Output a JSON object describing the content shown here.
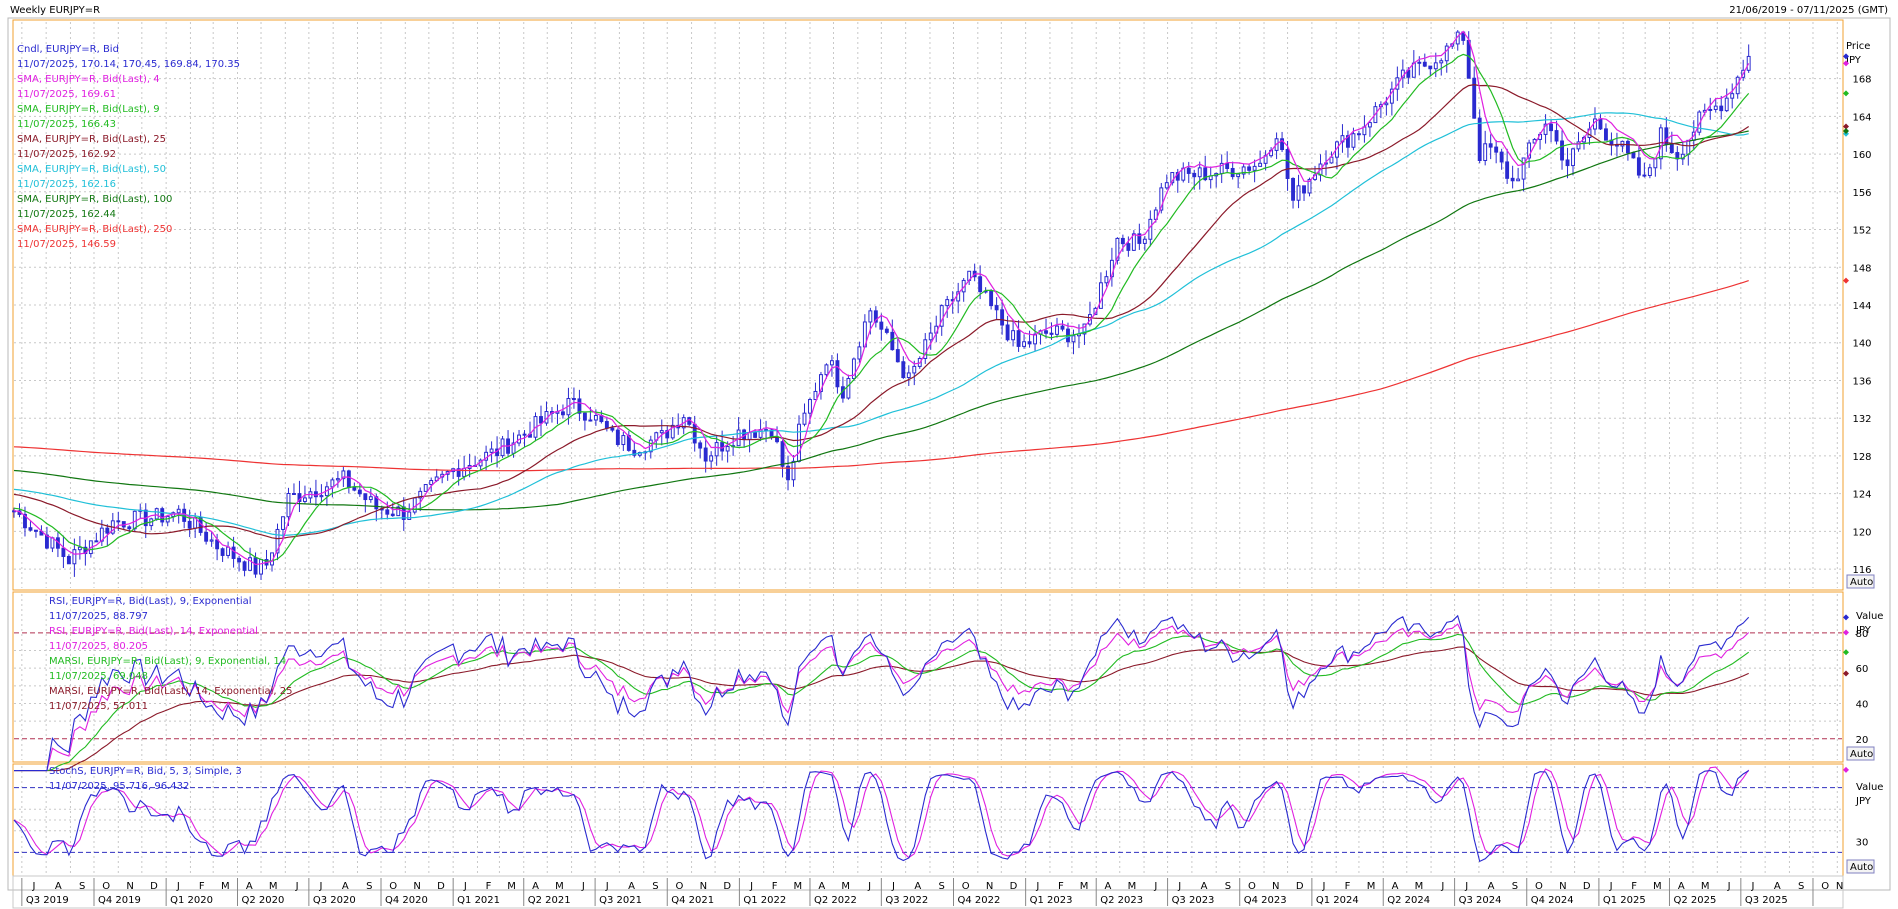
{
  "header": {
    "title": "Weekly EURJPY=R",
    "date_range": "21/06/2019 - 07/11/2025 (GMT)"
  },
  "price_panel": {
    "axis_label": "Price",
    "unit": "JPY",
    "auto": "Auto",
    "legend": [
      {
        "label": "Cndl, EURJPY=R, Bid",
        "value": "11/07/2025, 170.14, 170.45, 169.84, 170.35",
        "color": "#2a2ad0"
      },
      {
        "label": "SMA, EURJPY=R, Bid(Last),  4",
        "value": "11/07/2025, 169.61",
        "color": "#e020e0"
      },
      {
        "label": "SMA, EURJPY=R, Bid(Last),  9",
        "value": "11/07/2025, 166.43",
        "color": "#22bb22"
      },
      {
        "label": "SMA, EURJPY=R, Bid(Last),  25",
        "value": "11/07/2025, 162.92",
        "color": "#8b1a2a"
      },
      {
        "label": "SMA, EURJPY=R, Bid(Last),  50",
        "value": "11/07/2025, 162.16",
        "color": "#20c0d8"
      },
      {
        "label": "SMA, EURJPY=R, Bid(Last),  100",
        "value": "11/07/2025, 162.44",
        "color": "#117711"
      },
      {
        "label": "SMA, EURJPY=R, Bid(Last),  250",
        "value": "11/07/2025, 146.59",
        "color": "#ee3333"
      }
    ]
  },
  "rsi_panel": {
    "axis_label": "Value",
    "unit": "JPY",
    "auto": "Auto",
    "legend": [
      {
        "label": "RSI, EURJPY=R, Bid(Last),  9, Exponential",
        "value": "11/07/2025, 88.797",
        "color": "#2a2ad0"
      },
      {
        "label": "RSI, EURJPY=R, Bid(Last),  14, Exponential",
        "value": "11/07/2025, 80.205",
        "color": "#e020e0"
      },
      {
        "label": "MARSI, EURJPY=R, Bid(Last),  9, Exponential, 14",
        "value": "11/07/2025, 69.048",
        "color": "#22bb22"
      },
      {
        "label": "MARSI, EURJPY=R, Bid(Last),  14, Exponential, 25",
        "value": "11/07/2025, 57.011",
        "color": "#8b1a2a"
      }
    ]
  },
  "stoch_panel": {
    "axis_label": "Value",
    "unit": "JPY",
    "auto": "Auto",
    "legend": [
      {
        "label": "StochS, EURJPY=R, Bid,  5, 3, Simple, 3",
        "value": "11/07/2025, 95.716, 96.432",
        "color": "#2a2ad0"
      }
    ]
  },
  "colors": {
    "frame": "#f0a030",
    "grid": "#c8c8c8",
    "band": "#b03050",
    "stoch_band": "#3030c0"
  },
  "chart_data": [
    {
      "type": "candlestick",
      "ylim": [
        114,
        174
      ],
      "yticks": [
        116,
        120,
        124,
        128,
        132,
        136,
        140,
        144,
        148,
        152,
        156,
        160,
        164,
        168
      ],
      "x_start": "2019-06-21",
      "x_end": "2025-11-07",
      "month_labels": [
        "J",
        "A",
        "S",
        "O",
        "N",
        "D",
        "J",
        "F",
        "M",
        "A",
        "M",
        "J",
        "J",
        "A",
        "S",
        "O",
        "N",
        "D",
        "J",
        "F",
        "M",
        "A",
        "M",
        "J",
        "J",
        "A",
        "S",
        "O",
        "N",
        "D",
        "J",
        "F",
        "M",
        "A",
        "M",
        "J",
        "J",
        "A",
        "S",
        "O",
        "N",
        "D",
        "J",
        "F",
        "M",
        "A",
        "M",
        "J",
        "J",
        "A",
        "S",
        "O",
        "N",
        "D",
        "J",
        "F",
        "M",
        "A",
        "M",
        "J",
        "J",
        "A",
        "S",
        "O",
        "N",
        "D",
        "J",
        "F",
        "M",
        "A",
        "M",
        "J",
        "J",
        "A",
        "S",
        "O",
        "N"
      ],
      "quarter_labels": [
        "Q3 2019",
        "Q4 2019",
        "Q1 2020",
        "Q2 2020",
        "Q3 2020",
        "Q4 2020",
        "Q1 2021",
        "Q2 2021",
        "Q3 2021",
        "Q4 2021",
        "Q1 2022",
        "Q2 2022",
        "Q3 2022",
        "Q4 2022",
        "Q1 2023",
        "Q2 2023",
        "Q3 2023",
        "Q4 2023",
        "Q1 2024",
        "Q2 2024",
        "Q3 2024",
        "Q4 2024",
        "Q1 2025",
        "Q2 2025",
        "Q3 2025"
      ],
      "close_anchors": [
        [
          "2019-06-21",
          122.2
        ],
        [
          "2019-08-30",
          117.0
        ],
        [
          "2019-10-25",
          121.0
        ],
        [
          "2019-12-20",
          121.5
        ],
        [
          "2020-01-17",
          122.0
        ],
        [
          "2020-03-06",
          118.5
        ],
        [
          "2020-04-24",
          116.0
        ],
        [
          "2020-05-08",
          116.5
        ],
        [
          "2020-06-05",
          123.5
        ],
        [
          "2020-08-14",
          125.5
        ],
        [
          "2020-09-25",
          122.5
        ],
        [
          "2020-10-30",
          122.0
        ],
        [
          "2020-12-31",
          126.5
        ],
        [
          "2021-02-26",
          128.5
        ],
        [
          "2021-05-28",
          133.5
        ],
        [
          "2021-06-25",
          132.5
        ],
        [
          "2021-07-23",
          130.0
        ],
        [
          "2021-08-20",
          129.0
        ],
        [
          "2021-09-24",
          130.0
        ],
        [
          "2021-10-22",
          132.5
        ],
        [
          "2021-11-19",
          128.0
        ],
        [
          "2021-12-31",
          130.5
        ],
        [
          "2022-02-11",
          131.0
        ],
        [
          "2022-03-04",
          125.0
        ],
        [
          "2022-03-18",
          130.5
        ],
        [
          "2022-04-22",
          138.5
        ],
        [
          "2022-05-13",
          135.0
        ],
        [
          "2022-06-03",
          140.5
        ],
        [
          "2022-06-17",
          143.5
        ],
        [
          "2022-08-05",
          136.0
        ],
        [
          "2022-09-16",
          143.0
        ],
        [
          "2022-10-21",
          147.0
        ],
        [
          "2022-12-23",
          139.5
        ],
        [
          "2023-01-27",
          141.0
        ],
        [
          "2023-03-17",
          141.0
        ],
        [
          "2023-04-28",
          151.0
        ],
        [
          "2023-05-26",
          150.5
        ],
        [
          "2023-06-30",
          157.5
        ],
        [
          "2023-08-25",
          158.0
        ],
        [
          "2023-10-27",
          159.0
        ],
        [
          "2023-11-17",
          162.5
        ],
        [
          "2023-12-08",
          155.0
        ],
        [
          "2024-01-19",
          160.0
        ],
        [
          "2024-03-01",
          162.5
        ],
        [
          "2024-04-26",
          168.0
        ],
        [
          "2024-06-21",
          171.0
        ],
        [
          "2024-07-12",
          172.5
        ],
        [
          "2024-08-02",
          160.0
        ],
        [
          "2024-08-16",
          160.5
        ],
        [
          "2024-09-13",
          157.0
        ],
        [
          "2024-10-25",
          163.5
        ],
        [
          "2024-11-22",
          159.0
        ],
        [
          "2024-12-27",
          163.5
        ],
        [
          "2025-01-31",
          160.5
        ],
        [
          "2025-02-28",
          157.0
        ],
        [
          "2025-03-21",
          162.0
        ],
        [
          "2025-04-11",
          160.0
        ],
        [
          "2025-05-09",
          163.5
        ],
        [
          "2025-06-13",
          166.0
        ],
        [
          "2025-07-11",
          170.35
        ]
      ],
      "sma_last": {
        "sma4": 169.61,
        "sma9": 166.43,
        "sma25": 162.92,
        "sma50": 162.16,
        "sma100": 162.44,
        "sma250": 146.59
      }
    },
    {
      "type": "line",
      "ylim": [
        8,
        102
      ],
      "yticks": [
        20,
        40,
        60,
        80
      ],
      "bands": [
        80,
        20
      ],
      "series_last": {
        "rsi9": 88.797,
        "rsi14": 80.205,
        "marsi9": 69.048,
        "marsi14": 57.011
      }
    },
    {
      "type": "line",
      "ylim": [
        0,
        100
      ],
      "yticks": [
        30
      ],
      "bands": [
        80,
        20
      ],
      "series_last": {
        "k": 95.716,
        "d": 96.432
      }
    }
  ]
}
